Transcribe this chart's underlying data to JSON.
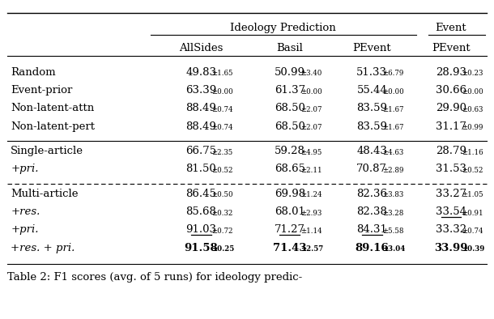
{
  "title_caption": "Table 2: F1 scores (avg. of 5 runs) for ideology predic-",
  "header_group1": "Ideology Prediction",
  "header_group2": "Event",
  "col_headers": [
    "AllSides",
    "Basil",
    "PEvent",
    "PEvent"
  ],
  "rows": [
    {
      "label": "Random",
      "label_style": "normal",
      "values": [
        "49.83",
        "50.99",
        "51.33",
        "28.93"
      ],
      "stds": [
        "1.65",
        "3.40",
        "6.79",
        "0.23"
      ],
      "bold": [
        false,
        false,
        false,
        false
      ],
      "underline": [
        false,
        false,
        false,
        false
      ]
    },
    {
      "label": "Event-prior",
      "label_style": "normal",
      "values": [
        "63.39",
        "61.37",
        "55.44",
        "30.66"
      ],
      "stds": [
        "0.00",
        "0.00",
        "0.00",
        "0.00"
      ],
      "bold": [
        false,
        false,
        false,
        false
      ],
      "underline": [
        false,
        false,
        false,
        false
      ]
    },
    {
      "label": "Non-latent-attn",
      "label_style": "normal",
      "values": [
        "88.49",
        "68.50",
        "83.59",
        "29.90"
      ],
      "stds": [
        "0.74",
        "2.07",
        "1.67",
        "0.63"
      ],
      "bold": [
        false,
        false,
        false,
        false
      ],
      "underline": [
        false,
        false,
        false,
        false
      ]
    },
    {
      "label": "Non-latent-pert",
      "label_style": "normal",
      "values": [
        "88.49",
        "68.50",
        "83.59",
        "31.17"
      ],
      "stds": [
        "0.74",
        "2.07",
        "1.67",
        "0.99"
      ],
      "bold": [
        false,
        false,
        false,
        false
      ],
      "underline": [
        false,
        false,
        false,
        false
      ]
    },
    {
      "label": "Single-article",
      "label_style": "normal",
      "values": [
        "66.75",
        "59.28",
        "48.43",
        "28.79"
      ],
      "stds": [
        "2.35",
        "4.95",
        "4.63",
        "1.16"
      ],
      "bold": [
        false,
        false,
        false,
        false
      ],
      "underline": [
        false,
        false,
        false,
        false
      ]
    },
    {
      "label": "+pri.",
      "label_style": "italic",
      "values": [
        "81.50",
        "68.65",
        "70.87",
        "31.53"
      ],
      "stds": [
        "0.52",
        "2.11",
        "2.89",
        "0.52"
      ],
      "bold": [
        false,
        false,
        false,
        false
      ],
      "underline": [
        false,
        false,
        false,
        false
      ]
    },
    {
      "label": "Multi-article",
      "label_style": "normal",
      "values": [
        "86.45",
        "69.98",
        "82.36",
        "33.27"
      ],
      "stds": [
        "0.50",
        "1.24",
        "3.83",
        "1.05"
      ],
      "bold": [
        false,
        false,
        false,
        false
      ],
      "underline": [
        false,
        false,
        false,
        false
      ]
    },
    {
      "label": "+res.",
      "label_style": "italic",
      "values": [
        "85.68",
        "68.01",
        "82.38",
        "33.54"
      ],
      "stds": [
        "0.32",
        "2.93",
        "3.28",
        "0.91"
      ],
      "bold": [
        false,
        false,
        false,
        false
      ],
      "underline": [
        false,
        false,
        false,
        true
      ]
    },
    {
      "label": "+pri.",
      "label_style": "italic",
      "values": [
        "91.03",
        "71.27",
        "84.31",
        "33.32"
      ],
      "stds": [
        "0.72",
        "1.14",
        "5.58",
        "0.74"
      ],
      "bold": [
        false,
        false,
        false,
        false
      ],
      "underline": [
        true,
        true,
        true,
        false
      ]
    },
    {
      "label": "+res. + pri.",
      "label_style": "italic",
      "values": [
        "91.58",
        "71.43",
        "89.16",
        "33.99"
      ],
      "stds": [
        "0.25",
        "2.57",
        "3.04",
        "0.39"
      ],
      "bold": [
        true,
        true,
        true,
        true
      ],
      "underline": [
        false,
        false,
        false,
        false
      ]
    }
  ],
  "bg_color": "#ffffff",
  "text_color": "#000000",
  "main_fontsize": 9.5,
  "sub_fontsize": 6.2,
  "caption_fontsize": 9.5
}
